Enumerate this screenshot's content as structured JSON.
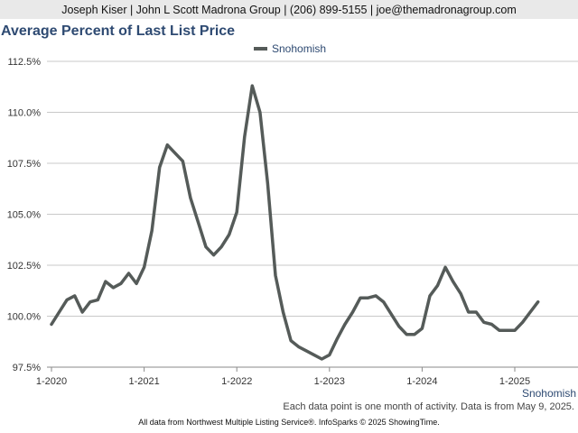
{
  "header": {
    "contact": "Joseph Kiser | John L Scott Madrona Group | (206) 899-5155 | joe@themadronagroup.com"
  },
  "chart_data": {
    "type": "line",
    "title": "Average Percent of Last List Price",
    "xlabel": "",
    "ylabel": "",
    "ylim": [
      97.5,
      112.5
    ],
    "y_ticks": [
      "97.5%",
      "100.0%",
      "102.5%",
      "105.0%",
      "107.5%",
      "110.0%",
      "112.5%"
    ],
    "x_ticks": [
      "1-2020",
      "1-2021",
      "1-2022",
      "1-2023",
      "1-2024",
      "1-2025"
    ],
    "legend_position": "top",
    "grid": true,
    "line_color": "#555b59",
    "series": [
      {
        "name": "Snohomish",
        "x_start": "2020-01",
        "values": [
          99.6,
          100.2,
          100.8,
          101.0,
          100.2,
          100.7,
          100.8,
          101.7,
          101.4,
          101.6,
          102.1,
          101.6,
          102.4,
          104.2,
          107.3,
          108.4,
          108.0,
          107.6,
          105.8,
          104.6,
          103.4,
          103.0,
          103.4,
          104.0,
          105.1,
          108.8,
          111.3,
          110.0,
          106.5,
          102.0,
          100.2,
          98.8,
          98.5,
          98.3,
          98.1,
          97.9,
          98.1,
          98.9,
          99.6,
          100.2,
          100.9,
          100.9,
          101.0,
          100.7,
          100.1,
          99.5,
          99.1,
          99.1,
          99.4,
          101.0,
          101.5,
          102.4,
          101.7,
          101.1,
          100.2,
          100.2,
          99.7,
          99.6,
          99.3,
          99.3,
          99.3,
          99.7,
          100.2,
          100.7
        ]
      }
    ]
  },
  "bottom_right_label": "Snohomish",
  "note": "Each data point is one month of activity. Data is from May 9, 2025.",
  "footer": "All data from Northwest Multiple Listing Service®. InfoSparks © 2025 ShowingTime."
}
